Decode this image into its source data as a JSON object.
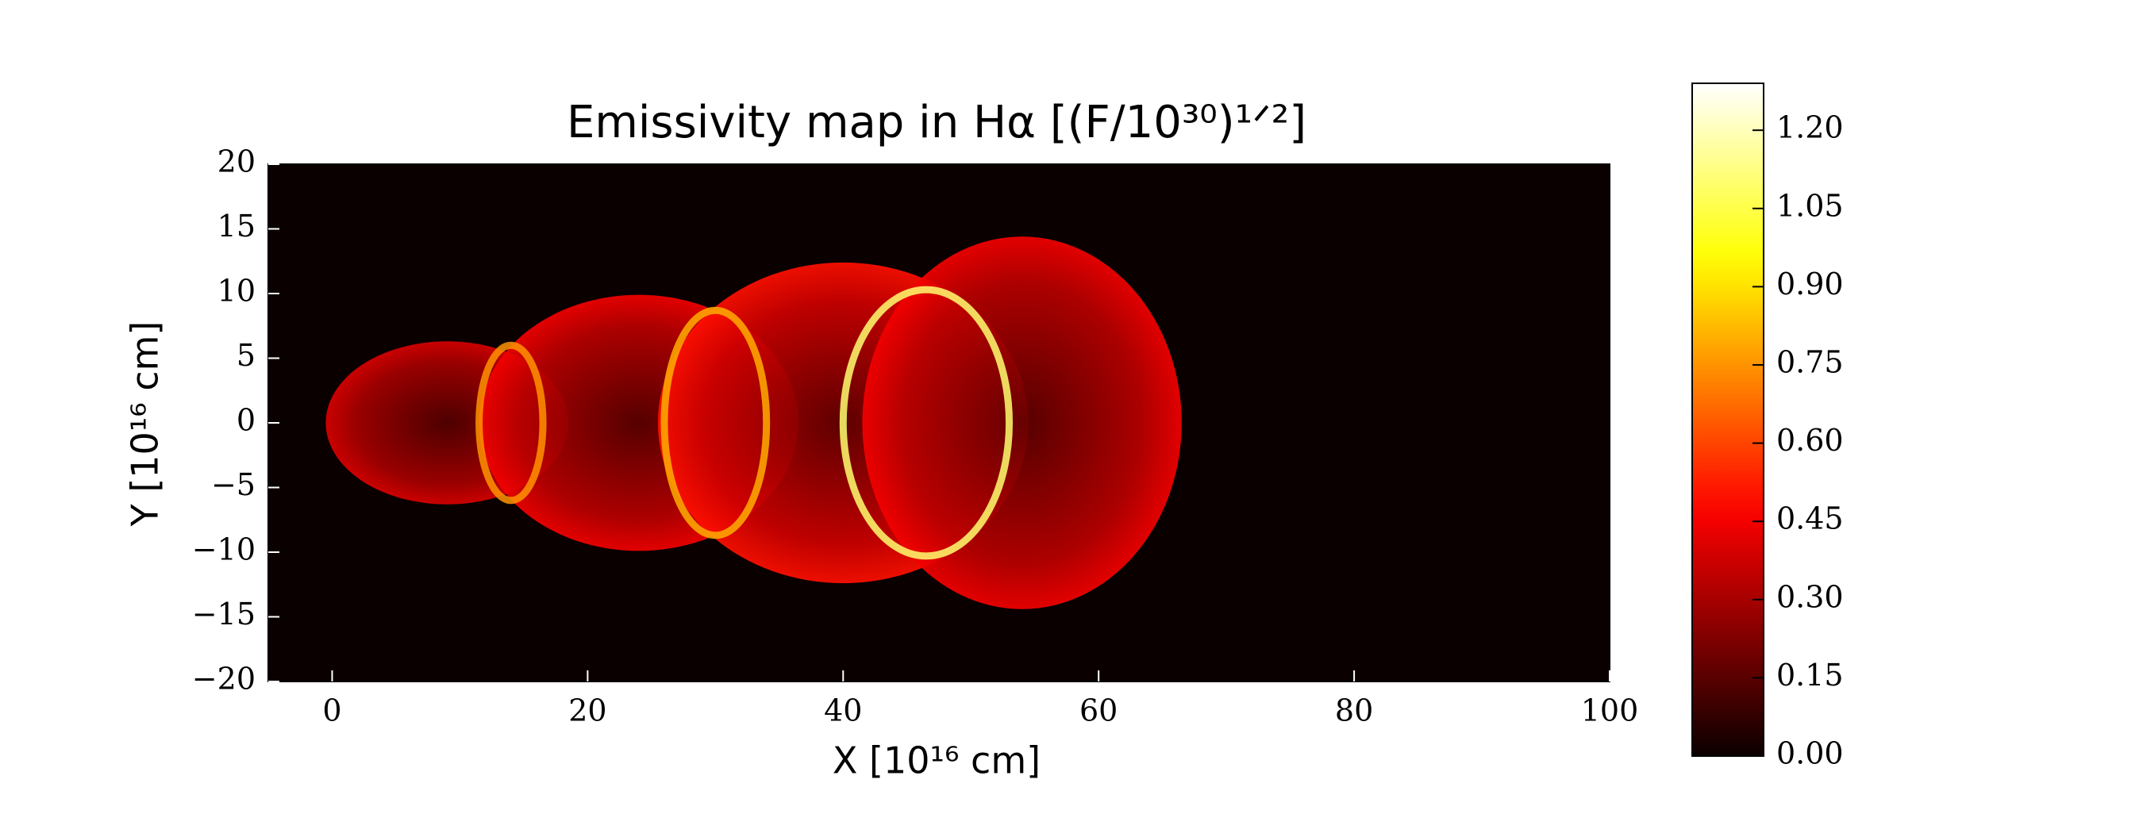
{
  "chart_data": {
    "type": "heatmap",
    "title": "Emissivity map in Hα [(F/10³⁰)¹ᐟ²]",
    "xlabel": "X [10¹⁶ cm]",
    "ylabel": "Y [10¹⁶ cm]",
    "cmap": "hot",
    "xlim": [
      -5,
      100
    ],
    "ylim": [
      -20,
      20
    ],
    "xticks": [
      0,
      20,
      40,
      60,
      80,
      100
    ],
    "yticks": [
      {
        "value": -20,
        "label": "−20"
      },
      {
        "value": -15,
        "label": "−15"
      },
      {
        "value": -10,
        "label": "−10"
      },
      {
        "value": -5,
        "label": "−5"
      },
      0,
      5,
      10,
      15,
      20
    ],
    "clim": [
      0,
      1.29
    ],
    "cticks": [
      {
        "value": 0,
        "label": "0.00"
      },
      {
        "value": 0.15,
        "label": "0.15"
      },
      {
        "value": 0.3,
        "label": "0.30"
      },
      {
        "value": 0.45,
        "label": "0.45"
      },
      {
        "value": 0.6,
        "label": "0.60"
      },
      {
        "value": 0.75,
        "label": "0.75"
      },
      {
        "value": 0.9,
        "label": "0.90"
      },
      {
        "value": 1.05,
        "label": "1.05"
      },
      {
        "value": 1.2,
        "label": "1.20"
      }
    ],
    "shells": [
      {
        "x": 9,
        "rx": 9.5,
        "ry": 6.3,
        "value": 0.4
      },
      {
        "x": 24,
        "rx": 12.5,
        "ry": 9.9,
        "value": 0.45
      },
      {
        "x": 40,
        "rx": 14.5,
        "ry": 12.4,
        "value": 0.5
      },
      {
        "x": 54,
        "rx": 12.5,
        "ry": 14.4,
        "value": 0.45
      }
    ],
    "rings": [
      {
        "x": 14,
        "rx": 2.5,
        "ry": 6,
        "value": 0.75
      },
      {
        "x": 30,
        "rx": 4,
        "ry": 8.7,
        "value": 0.8
      },
      {
        "x": 46.5,
        "rx": 6.5,
        "ry": 10.3,
        "value": 1.1
      }
    ]
  }
}
